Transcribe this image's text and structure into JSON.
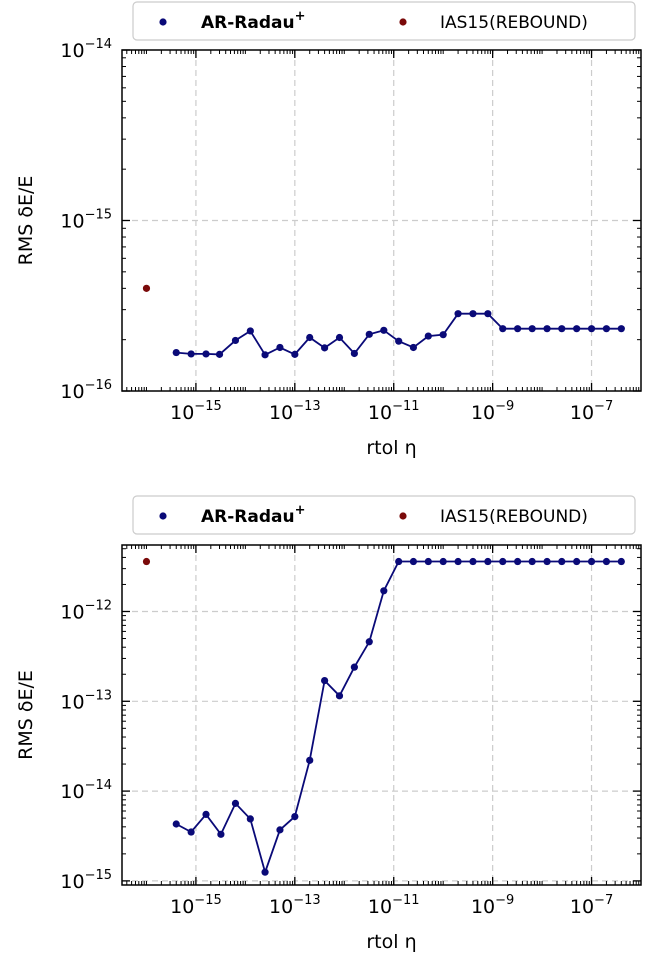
{
  "chart_data": [
    {
      "type": "line",
      "xlabel": "rtol η",
      "ylabel": "RMS δE/E",
      "xscale": "log",
      "yscale": "log",
      "xlim": [
        3.2e-17,
        1e-06
      ],
      "ylim": [
        1e-16,
        1e-14
      ],
      "grid": true,
      "legend": "top",
      "x_ticks": [
        1e-15,
        1e-13,
        1e-11,
        1e-09,
        1e-07
      ],
      "x_tick_labels": [
        {
          "base": "10",
          "exp": "−15"
        },
        {
          "base": "10",
          "exp": "−13"
        },
        {
          "base": "10",
          "exp": "−11"
        },
        {
          "base": "10",
          "exp": "−9"
        },
        {
          "base": "10",
          "exp": "−7"
        }
      ],
      "y_ticks": [
        1e-16,
        1e-15,
        1e-14
      ],
      "y_tick_labels": [
        {
          "base": "10",
          "exp": "−16"
        },
        {
          "base": "10",
          "exp": "−15"
        },
        {
          "base": "10",
          "exp": "−14"
        }
      ],
      "series": [
        {
          "name": "AR-Radau",
          "name_sup": "+",
          "color": "#0a0a78",
          "connected": true,
          "x": [
            4e-16,
            8e-16,
            1.6e-15,
            3e-15,
            6.3e-15,
            1.26e-14,
            2.5e-14,
            5e-14,
            1e-13,
            2e-13,
            4e-13,
            8e-13,
            1.6e-12,
            3.2e-12,
            6.3e-12,
            1.26e-11,
            2.5e-11,
            5e-11,
            1e-10,
            2e-10,
            4e-10,
            8e-10,
            1.6e-09,
            3.2e-09,
            6.3e-09,
            1.26e-08,
            2.5e-08,
            5e-08,
            1e-07,
            2e-07,
            4e-07
          ],
          "y": [
            1.68e-16,
            1.65e-16,
            1.65e-16,
            1.64e-16,
            1.98e-16,
            2.25e-16,
            1.63e-16,
            1.8e-16,
            1.64e-16,
            2.06e-16,
            1.79e-16,
            2.06e-16,
            1.66e-16,
            2.15e-16,
            2.27e-16,
            1.96e-16,
            1.8e-16,
            2.1e-16,
            2.14e-16,
            2.84e-16,
            2.84e-16,
            2.84e-16,
            2.32e-16,
            2.32e-16,
            2.32e-16,
            2.32e-16,
            2.32e-16,
            2.32e-16,
            2.32e-16,
            2.32e-16,
            2.32e-16
          ]
        },
        {
          "name": "IAS15(REBOUND)",
          "color": "#7a0a0a",
          "connected": false,
          "x": [
            1e-16
          ],
          "y": [
            4e-16
          ]
        }
      ]
    },
    {
      "type": "line",
      "xlabel": "rtol η",
      "ylabel": "RMS δE/E",
      "xscale": "log",
      "yscale": "log",
      "xlim": [
        3.2e-17,
        1e-06
      ],
      "ylim": [
        9e-16,
        5.5e-12
      ],
      "grid": true,
      "legend": "top",
      "x_ticks": [
        1e-15,
        1e-13,
        1e-11,
        1e-09,
        1e-07
      ],
      "x_tick_labels": [
        {
          "base": "10",
          "exp": "−15"
        },
        {
          "base": "10",
          "exp": "−13"
        },
        {
          "base": "10",
          "exp": "−11"
        },
        {
          "base": "10",
          "exp": "−9"
        },
        {
          "base": "10",
          "exp": "−7"
        }
      ],
      "y_ticks": [
        1e-15,
        1e-14,
        1e-13,
        1e-12
      ],
      "y_tick_labels": [
        {
          "base": "10",
          "exp": "−15"
        },
        {
          "base": "10",
          "exp": "−14"
        },
        {
          "base": "10",
          "exp": "−13"
        },
        {
          "base": "10",
          "exp": "−12"
        }
      ],
      "series": [
        {
          "name": "AR-Radau",
          "name_sup": "+",
          "color": "#0a0a78",
          "connected": true,
          "x": [
            4e-16,
            8e-16,
            1.6e-15,
            3.2e-15,
            6.3e-15,
            1.26e-14,
            2.5e-14,
            5e-14,
            1e-13,
            2e-13,
            4e-13,
            8e-13,
            1.6e-12,
            3.2e-12,
            6.3e-12,
            1.26e-11,
            2.5e-11,
            5e-11,
            1e-10,
            2e-10,
            4e-10,
            8e-10,
            1.6e-09,
            3.2e-09,
            6.3e-09,
            1.26e-08,
            2.5e-08,
            5e-08,
            1e-07,
            2e-07,
            4e-07
          ],
          "y": [
            4.3e-15,
            3.5e-15,
            5.5e-15,
            3.3e-15,
            7.3e-15,
            4.9e-15,
            1.25e-15,
            3.7e-15,
            5.2e-15,
            2.2e-14,
            1.7e-13,
            1.15e-13,
            2.4e-13,
            4.6e-13,
            1.7e-12,
            3.6e-12,
            3.6e-12,
            3.6e-12,
            3.6e-12,
            3.6e-12,
            3.6e-12,
            3.6e-12,
            3.6e-12,
            3.6e-12,
            3.6e-12,
            3.6e-12,
            3.6e-12,
            3.6e-12,
            3.6e-12,
            3.6e-12,
            3.6e-12
          ]
        },
        {
          "name": "IAS15(REBOUND)",
          "color": "#7a0a0a",
          "connected": false,
          "x": [
            1e-16
          ],
          "y": [
            3.6e-12
          ]
        }
      ]
    }
  ]
}
